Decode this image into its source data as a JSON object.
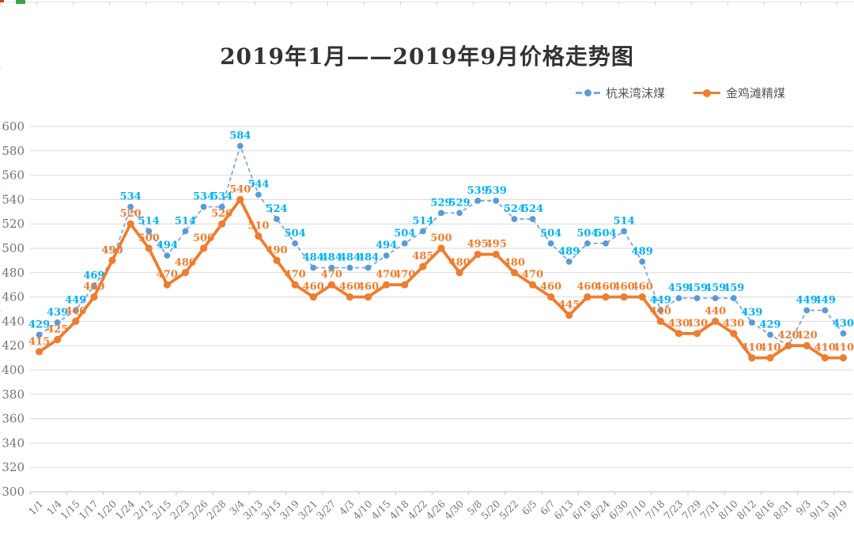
{
  "chart_data": {
    "type": "line",
    "title": "2019年1月——2019年9月价格走势图",
    "categories": [
      "1/1",
      "1/4",
      "1/15",
      "1/17",
      "1/20",
      "1/24",
      "2/12",
      "2/15",
      "2/23",
      "2/26",
      "2/28",
      "3/4",
      "3/13",
      "3/15",
      "3/19",
      "3/21",
      "3/27",
      "4/3",
      "4/10",
      "4/15",
      "4/18",
      "4/22",
      "4/26",
      "4/30",
      "5/8",
      "5/20",
      "5/22",
      "6/5",
      "6/7",
      "6/13",
      "6/19",
      "6/24",
      "6/30",
      "7/10",
      "7/18",
      "7/23",
      "7/29",
      "7/31",
      "8/10",
      "8/12",
      "8/16",
      "8/31",
      "9/3",
      "9/13",
      "9/19"
    ],
    "series": [
      {
        "name": "杭来湾沫煤",
        "line_style": "dashed",
        "line_color": "#7EA6DC",
        "marker_color": "#5B9BD5",
        "label_color": "#00B0F0",
        "values": [
          429,
          439,
          449,
          469,
          490,
          534,
          514,
          494,
          514,
          534,
          534,
          584,
          544,
          524,
          504,
          484,
          484,
          484,
          484,
          494,
          504,
          514,
          529,
          529,
          539,
          539,
          524,
          524,
          504,
          489,
          504,
          504,
          514,
          489,
          449,
          459,
          459,
          459,
          459,
          439,
          429,
          420,
          449,
          449,
          430
        ]
      },
      {
        "name": "金鸡滩精煤",
        "line_style": "solid",
        "line_color": "#ED7D31",
        "marker_color": "#ED7D31",
        "label_color": "#ED7D31",
        "values": [
          415,
          425,
          440,
          460,
          490,
          520,
          500,
          470,
          480,
          500,
          520,
          540,
          510,
          490,
          470,
          460,
          470,
          460,
          460,
          470,
          470,
          485,
          500,
          480,
          495,
          495,
          480,
          470,
          460,
          445,
          460,
          460,
          460,
          460,
          440,
          430,
          430,
          440,
          430,
          410,
          410,
          420,
          420,
          410,
          410
        ]
      }
    ],
    "ylim": [
      300,
      600
    ],
    "ytick_step": 20,
    "yticks": [
      600,
      580,
      560,
      540,
      520,
      500,
      480,
      460,
      440,
      420,
      400,
      380,
      360,
      340,
      320,
      300
    ],
    "grid": "horizontal",
    "grid_color": "#D9D9D9",
    "axis_color": "#BFBFBF",
    "legend_position": "top-right"
  }
}
